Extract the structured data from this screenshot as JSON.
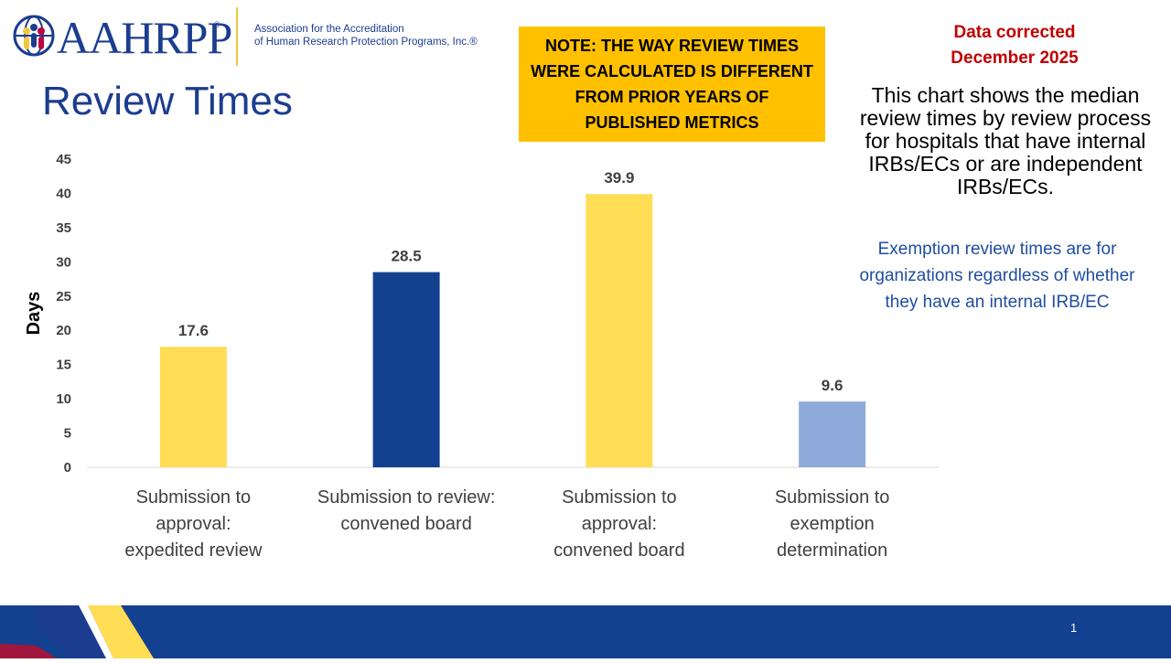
{
  "header": {
    "logo_text": "AAHRPP",
    "logo_reg": "®",
    "org_name_line1": "Association for the Accreditation",
    "org_name_line2": "of Human Research Protection Programs, Inc.®",
    "title": "Review Times"
  },
  "note": {
    "text": "NOTE: THE WAY REVIEW TIMES WERE CALCULATED  IS DIFFERENT FROM PRIOR YEARS OF PUBLISHED METRICS"
  },
  "correction": {
    "line1": "Data corrected",
    "line2": "December 2025"
  },
  "description": "This chart shows the median review times by review process for hospitals that have internal IRBs/ECs or are independent IRBs/ECs.",
  "exemption_note": "Exemption review times are for organizations regardless of whether they have an internal IRB/EC",
  "colors": {
    "brand_blue": "#14418f",
    "yellow": "#ffdd55",
    "light_blue": "#8eaadb",
    "note_bg": "#ffc000",
    "correction_red": "#c00000"
  },
  "chart_data": {
    "type": "bar",
    "categories": [
      [
        "Submission to",
        "approval:",
        "expedited review"
      ],
      [
        "Submission to review:",
        "convened board"
      ],
      [
        "Submission to",
        "approval:",
        "convened board"
      ],
      [
        "Submission to",
        "exemption",
        "determination"
      ]
    ],
    "values": [
      17.6,
      28.5,
      39.9,
      9.6
    ],
    "value_labels": [
      "17.6",
      "28.5",
      "39.9",
      "9.6"
    ],
    "bar_colors": [
      "#ffdd55",
      "#14418f",
      "#ffdd55",
      "#8eaadb"
    ],
    "ylabel": "Days",
    "ylim": [
      0,
      45
    ],
    "yticks": [
      0,
      5,
      10,
      15,
      20,
      25,
      30,
      35,
      40,
      45
    ],
    "grid": false
  },
  "footer": {
    "page_number": "1"
  }
}
